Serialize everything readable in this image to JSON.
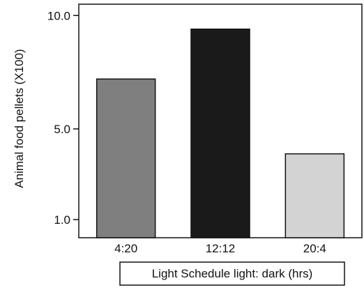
{
  "chart_data": {
    "type": "bar",
    "title": "",
    "xlabel": "Light Schedule light: dark (hrs)",
    "ylabel": "Animal food pellets (X100)",
    "categories": [
      "4:20",
      "12:12",
      "20:4"
    ],
    "values": [
      7.2,
      9.4,
      3.9
    ],
    "yticks": [
      "1.0",
      "5.0",
      "10.0"
    ],
    "ylim": [
      0.2,
      10.5
    ],
    "grid": false,
    "legend": "none",
    "colors": {
      "bars": [
        "#7f7f7f",
        "#1a1a1a",
        "#d3d3d3"
      ],
      "outline": "#111111",
      "axis": "#111111"
    }
  }
}
